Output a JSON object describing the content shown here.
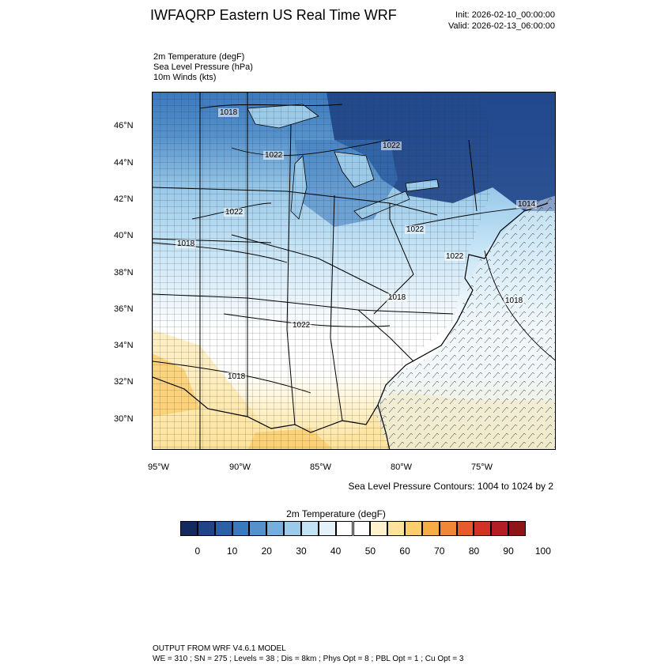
{
  "header": {
    "title": "IWFAQRP Eastern US Real Time WRF",
    "init": "Init: 2026-02-10_00:00:00",
    "valid": "Valid: 2026-02-13_06:00:00"
  },
  "fields": [
    "2m Temperature   (degF)",
    "Sea Level Pressure   (hPa)",
    "10m Winds   (kts)"
  ],
  "axes": {
    "lat_labels": [
      "46°N",
      "44°N",
      "42°N",
      "40°N",
      "38°N",
      "36°N",
      "34°N",
      "32°N",
      "30°N"
    ],
    "lon_labels": [
      "95°W",
      "90°W",
      "85°W",
      "80°W",
      "75°W"
    ]
  },
  "pressure_labels": [
    "1018",
    "1022",
    "1022",
    "1022",
    "1018",
    "1022",
    "1014",
    "1022",
    "1018",
    "1018",
    "1022",
    "1018"
  ],
  "slp_note": "Sea Level Pressure Contours: 1004 to 1024 by 2",
  "colorbar": {
    "title": "2m Temperature  (degF)",
    "tick_labels": [
      "0",
      "10",
      "20",
      "30",
      "40",
      "50",
      "60",
      "70",
      "80",
      "90",
      "100"
    ],
    "colors": [
      "#142a5e",
      "#1f4488",
      "#2c5fa6",
      "#3b78be",
      "#5592cc",
      "#76aedc",
      "#9ccbea",
      "#c2e2f5",
      "#e3f1fa",
      "#ffffff",
      "#ffffff",
      "#fff2cc",
      "#fde39a",
      "#fbcd6c",
      "#f7ad46",
      "#f08738",
      "#e65a2e",
      "#d2312a",
      "#b41d24",
      "#8e1417"
    ]
  },
  "footer": {
    "line1": "OUTPUT FROM WRF V4.6.1 MODEL",
    "line2": "WE = 310 ; SN = 275 ; Levels = 38 ; Dis = 8km ; Phys Opt = 8 ; PBL Opt = 1 ; Cu Opt = 3"
  }
}
